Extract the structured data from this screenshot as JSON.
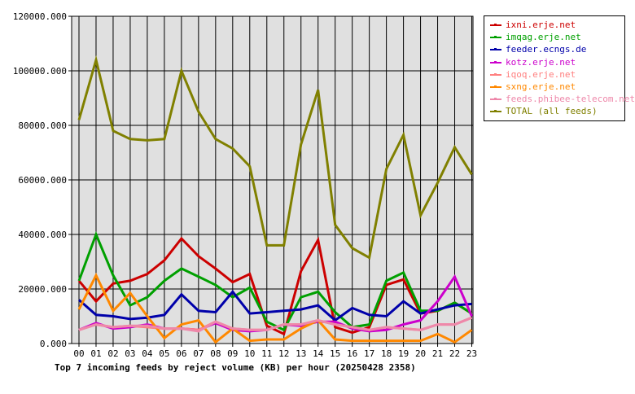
{
  "chart_data": {
    "type": "line",
    "title": "Top 7 incoming feeds by reject volume (KB) per hour (20250428 2358)",
    "categories": [
      "00",
      "01",
      "02",
      "03",
      "04",
      "05",
      "06",
      "07",
      "08",
      "09",
      "10",
      "11",
      "12",
      "13",
      "14",
      "15",
      "16",
      "17",
      "18",
      "19",
      "20",
      "21",
      "22",
      "23"
    ],
    "y_ticks": [
      "0.000",
      "20000.000",
      "40000.000",
      "60000.000",
      "80000.000",
      "100000.000",
      "120000.000"
    ],
    "ylim": [
      0,
      120000
    ],
    "grid": true,
    "legend_position": "right",
    "series": [
      {
        "name": "ixni.erje.net",
        "color": "#cc0000",
        "values": [
          23000,
          15500,
          22000,
          23000,
          25500,
          30500,
          38500,
          32000,
          27500,
          22500,
          25500,
          6500,
          3500,
          26500,
          38000,
          6000,
          4000,
          6000,
          21500,
          23500,
          11000,
          12000,
          15000,
          11000
        ]
      },
      {
        "name": "imqag.erje.net",
        "color": "#00a000",
        "values": [
          23000,
          40000,
          25000,
          14000,
          17000,
          23000,
          27500,
          24500,
          21500,
          17000,
          20500,
          8000,
          5000,
          17000,
          19000,
          11500,
          6000,
          7000,
          23000,
          26000,
          12000,
          12000,
          15000,
          11000
        ]
      },
      {
        "name": "feeder.ecngs.de",
        "color": "#0000aa",
        "values": [
          16000,
          10500,
          10000,
          9000,
          9500,
          10500,
          18000,
          12000,
          11500,
          19000,
          11000,
          11500,
          12000,
          12500,
          14000,
          8500,
          13000,
          10500,
          10000,
          15500,
          11000,
          12500,
          14000,
          14500
        ]
      },
      {
        "name": "kotz.erje.net",
        "color": "#cc00cc",
        "values": [
          5000,
          7500,
          5500,
          6000,
          7000,
          5500,
          5500,
          5000,
          7500,
          5000,
          4500,
          5000,
          7000,
          6500,
          8000,
          8000,
          5500,
          4500,
          5000,
          7000,
          8500,
          15500,
          24500,
          10000
        ]
      },
      {
        "name": "iqoq.erje.net",
        "color": "#ff8080",
        "values": [
          5000,
          7000,
          6000,
          6500,
          6000,
          5500,
          5500,
          5000,
          8000,
          5500,
          5000,
          5000,
          7000,
          7000,
          8500,
          7000,
          6000,
          5000,
          6000,
          5500,
          5000,
          7000,
          7000,
          9500
        ]
      },
      {
        "name": "sxng.erje.net",
        "color": "#ff8800",
        "values": [
          12500,
          25000,
          12000,
          18500,
          10000,
          2000,
          7000,
          8500,
          500,
          5500,
          1000,
          1500,
          1500,
          5500,
          8500,
          1500,
          1000,
          1000,
          1000,
          1000,
          1000,
          3500,
          500,
          5000
        ]
      },
      {
        "name": "feeds.phibee-telecom.net",
        "color": "#ee88aa",
        "values": [
          5000,
          7000,
          6000,
          6500,
          6500,
          5500,
          5500,
          4500,
          8000,
          5500,
          5000,
          5000,
          7000,
          7000,
          8500,
          7000,
          6000,
          5000,
          6000,
          5500,
          5000,
          7000,
          7000,
          9500
        ]
      },
      {
        "name": "TOTAL (all feeds)",
        "color": "#808000",
        "values": [
          82000,
          104000,
          78000,
          75000,
          74500,
          75000,
          100000,
          85000,
          75000,
          71500,
          65000,
          36000,
          36000,
          73000,
          93000,
          43500,
          35000,
          31500,
          64000,
          76500,
          47000,
          59000,
          72000,
          62000
        ]
      }
    ]
  }
}
